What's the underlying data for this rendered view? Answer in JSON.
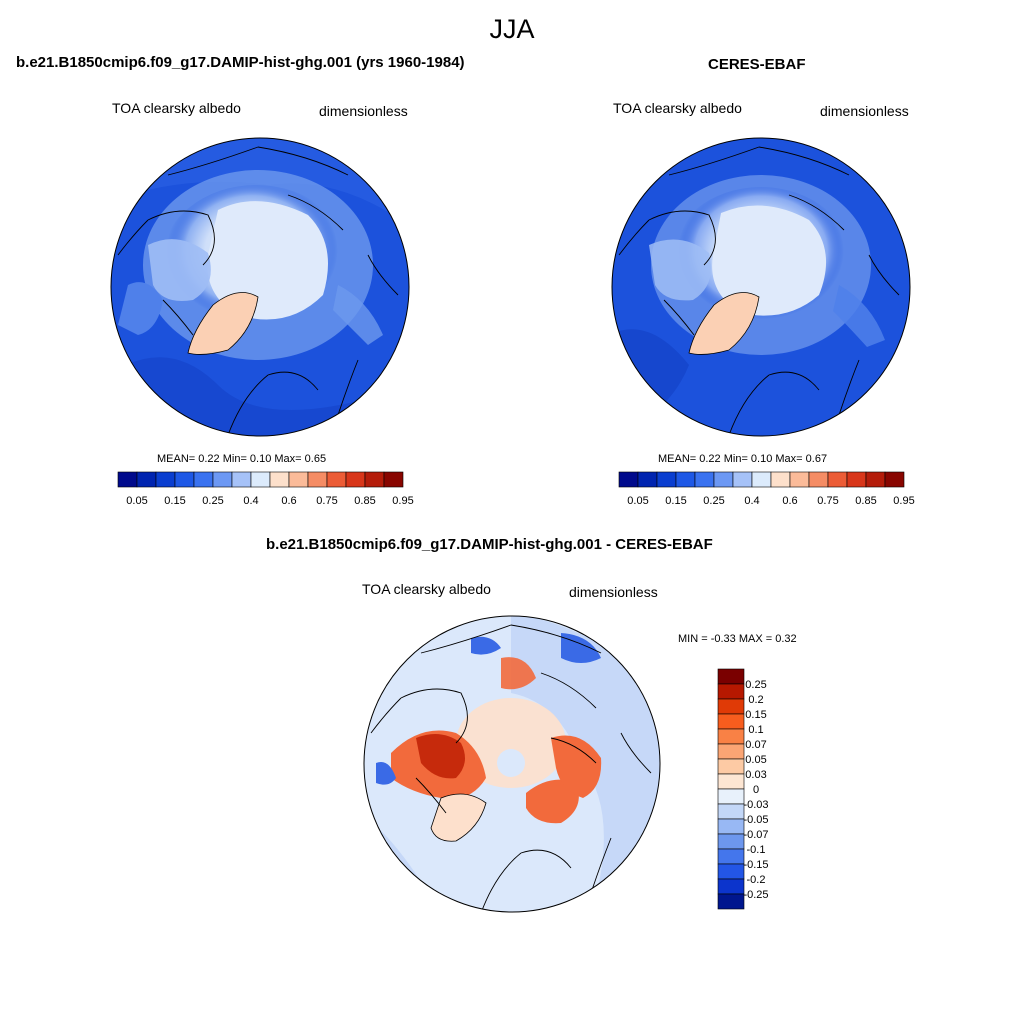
{
  "season": "JJA",
  "panels": [
    {
      "title": "b.e21.B1850cmip6.f09_g17.DAMIP-hist-ghg.001 (yrs 1960-1984)",
      "variable": "TOA clearsky albedo",
      "units": "dimensionless",
      "stats": {
        "mean": "0.22",
        "min": "0.10",
        "max": "0.65"
      },
      "stats_text": "MEAN=   0.22  Min=    0.10  Max=    0.65"
    },
    {
      "title": "CERES-EBAF",
      "variable": "TOA clearsky albedo",
      "units": "dimensionless",
      "stats": {
        "mean": "0.22",
        "min": "0.10",
        "max": "0.67"
      },
      "stats_text": "MEAN=   0.22  Min=    0.10  Max=    0.67"
    },
    {
      "title": "b.e21.B1850cmip6.f09_g17.DAMIP-hist-ghg.001 - CERES-EBAF",
      "variable": "TOA clearsky albedo",
      "units": "dimensionless",
      "stats": {
        "min": "-0.33",
        "max": "0.32"
      },
      "stats_text": "MIN =  -0.33 MAX =   0.32"
    }
  ],
  "colorbar_abs": {
    "colors": [
      "#000a8c",
      "#0024b0",
      "#0a3ed0",
      "#1e58e6",
      "#3a72f0",
      "#6c98f4",
      "#a6c2f8",
      "#dcebfc",
      "#fde0cb",
      "#fbbb99",
      "#f58c64",
      "#ec5c36",
      "#d8361a",
      "#b41c0a",
      "#880500"
    ],
    "tick_labels": [
      "0.05",
      "0.15",
      "0.25",
      "0.4",
      "0.6",
      "0.75",
      "0.85",
      "0.95"
    ]
  },
  "colorbar_diff": {
    "colors": [
      "#7a0000",
      "#b61800",
      "#e03a06",
      "#f75d1e",
      "#f98145",
      "#fba574",
      "#fdcaa4",
      "#fde6d3",
      "#e8f1fb",
      "#c3d7f7",
      "#98b8f4",
      "#6d97ee",
      "#4476ec",
      "#2356e6",
      "#0c34cc",
      "#00168e"
    ],
    "tick_labels": [
      "0.25",
      "0.2",
      "0.15",
      "0.1",
      "0.07",
      "0.05",
      "0.03",
      "0",
      "-0.03",
      "-0.05",
      "-0.07",
      "-0.1",
      "-0.15",
      "-0.2",
      "-0.25"
    ]
  },
  "map_colors": {
    "ocean": "#1c52dc",
    "ocean_deep": "#1443c8",
    "ice": "#dfeafb",
    "ice_edge": "#9fbdf5",
    "ice_mid": "#6d98ee",
    "greenland": "#fbd0b4",
    "diff_bg": "#dbe8fb",
    "diff_ocean": "#c6d8f8",
    "diff_pos": "#f26a3c",
    "diff_strong": "#c62a0c",
    "diff_warm": "#fde0cc",
    "diff_neg": "#3a6ae6"
  }
}
